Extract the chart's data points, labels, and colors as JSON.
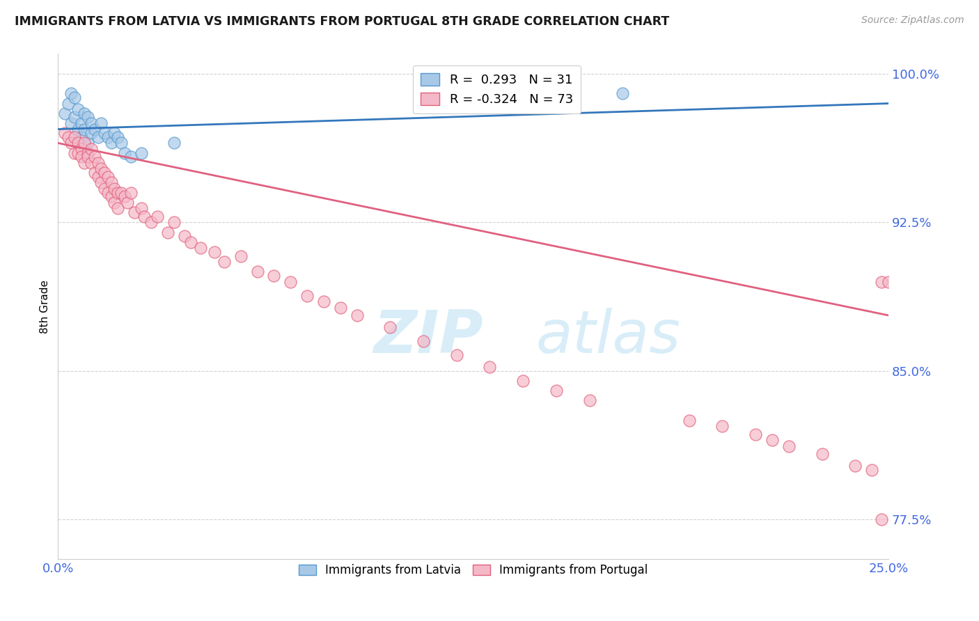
{
  "title": "IMMIGRANTS FROM LATVIA VS IMMIGRANTS FROM PORTUGAL 8TH GRADE CORRELATION CHART",
  "source": "Source: ZipAtlas.com",
  "ylabel": "8th Grade",
  "ytick_labels": [
    "77.5%",
    "85.0%",
    "92.5%",
    "100.0%"
  ],
  "ytick_vals": [
    0.775,
    0.85,
    0.925,
    1.0
  ],
  "xlim": [
    0.0,
    0.25
  ],
  "ylim": [
    0.755,
    1.01
  ],
  "legend_r_latvia": "R =  0.293",
  "legend_n_latvia": "N = 31",
  "legend_r_portugal": "R = -0.324",
  "legend_n_portugal": "N = 73",
  "color_latvia_fill": "#a8c8e8",
  "color_latvia_edge": "#5599cc",
  "color_portugal_fill": "#f4b8c8",
  "color_portugal_edge": "#e0607a",
  "color_line_latvia": "#3377bb",
  "color_line_portugal": "#e06080",
  "color_axis_labels": "#4169e1",
  "color_grid": "#cccccc",
  "watermark_color": "#d8edf8",
  "latvia_x": [
    0.002,
    0.003,
    0.004,
    0.004,
    0.005,
    0.005,
    0.006,
    0.006,
    0.007,
    0.007,
    0.008,
    0.008,
    0.009,
    0.009,
    0.01,
    0.01,
    0.011,
    0.012,
    0.013,
    0.014,
    0.015,
    0.016,
    0.017,
    0.018,
    0.019,
    0.02,
    0.022,
    0.025,
    0.035,
    0.155,
    0.17
  ],
  "latvia_y": [
    0.98,
    0.985,
    0.99,
    0.975,
    0.988,
    0.978,
    0.982,
    0.972,
    0.975,
    0.968,
    0.98,
    0.972,
    0.978,
    0.965,
    0.975,
    0.97,
    0.972,
    0.968,
    0.975,
    0.97,
    0.968,
    0.965,
    0.97,
    0.968,
    0.965,
    0.96,
    0.958,
    0.96,
    0.965,
    0.995,
    0.99
  ],
  "portugal_x": [
    0.002,
    0.003,
    0.004,
    0.005,
    0.005,
    0.006,
    0.006,
    0.007,
    0.007,
    0.008,
    0.008,
    0.009,
    0.009,
    0.01,
    0.01,
    0.011,
    0.011,
    0.012,
    0.012,
    0.013,
    0.013,
    0.014,
    0.014,
    0.015,
    0.015,
    0.016,
    0.016,
    0.017,
    0.017,
    0.018,
    0.018,
    0.019,
    0.02,
    0.021,
    0.022,
    0.023,
    0.025,
    0.026,
    0.028,
    0.03,
    0.033,
    0.035,
    0.038,
    0.04,
    0.043,
    0.047,
    0.05,
    0.055,
    0.06,
    0.065,
    0.07,
    0.075,
    0.08,
    0.085,
    0.09,
    0.1,
    0.11,
    0.12,
    0.13,
    0.14,
    0.15,
    0.16,
    0.19,
    0.2,
    0.21,
    0.215,
    0.22,
    0.23,
    0.24,
    0.245,
    0.248,
    0.25,
    0.248
  ],
  "portugal_y": [
    0.97,
    0.968,
    0.965,
    0.96,
    0.968,
    0.96,
    0.965,
    0.962,
    0.958,
    0.955,
    0.965,
    0.96,
    0.958,
    0.955,
    0.962,
    0.95,
    0.958,
    0.948,
    0.955,
    0.952,
    0.945,
    0.95,
    0.942,
    0.948,
    0.94,
    0.945,
    0.938,
    0.942,
    0.935,
    0.94,
    0.932,
    0.94,
    0.938,
    0.935,
    0.94,
    0.93,
    0.932,
    0.928,
    0.925,
    0.928,
    0.92,
    0.925,
    0.918,
    0.915,
    0.912,
    0.91,
    0.905,
    0.908,
    0.9,
    0.898,
    0.895,
    0.888,
    0.885,
    0.882,
    0.878,
    0.872,
    0.865,
    0.858,
    0.852,
    0.845,
    0.84,
    0.835,
    0.825,
    0.822,
    0.818,
    0.815,
    0.812,
    0.808,
    0.802,
    0.8,
    0.895,
    0.895,
    0.775
  ]
}
